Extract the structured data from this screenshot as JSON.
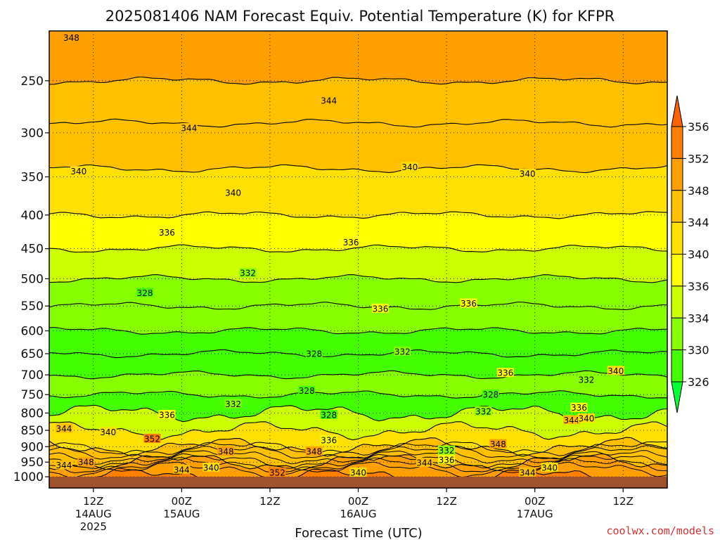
{
  "chart_data": {
    "type": "heatmap",
    "title": "2025081406 NAM Forecast Equiv. Potential Temperature (K) for KFPR",
    "xlabel": "Forecast Time (UTC)",
    "ylabel": "",
    "y_axis": {
      "scale": "log",
      "units": "hPa",
      "range": [
        1040,
        210
      ],
      "ticks": [
        250,
        300,
        350,
        400,
        450,
        500,
        550,
        600,
        650,
        700,
        750,
        800,
        850,
        900,
        950,
        1000
      ]
    },
    "x_axis": {
      "units": "hours since 2025-08-14 06Z",
      "range": [
        0,
        84
      ],
      "ticks": [
        {
          "hour": 6,
          "line1": "12Z",
          "line2": "14AUG",
          "line3": "2025"
        },
        {
          "hour": 18,
          "line1": "00Z",
          "line2": "15AUG",
          "line3": ""
        },
        {
          "hour": 30,
          "line1": "12Z",
          "line2": "",
          "line3": ""
        },
        {
          "hour": 42,
          "line1": "00Z",
          "line2": "16AUG",
          "line3": ""
        },
        {
          "hour": 54,
          "line1": "12Z",
          "line2": "",
          "line3": ""
        },
        {
          "hour": 66,
          "line1": "00Z",
          "line2": "17AUG",
          "line3": ""
        },
        {
          "hour": 78,
          "line1": "12Z",
          "line2": "",
          "line3": ""
        }
      ]
    },
    "grid": true,
    "colorbar": {
      "position": "right",
      "units": "K",
      "levels": [
        326,
        330,
        334,
        336,
        340,
        344,
        348,
        352,
        356
      ],
      "labels": [
        356,
        352,
        348,
        344,
        340,
        336,
        334,
        330,
        326
      ],
      "colors": [
        "#00ff33",
        "#44ff00",
        "#88ff00",
        "#ccff00",
        "#ffff00",
        "#ffe000",
        "#ffc000",
        "#ffa000",
        "#ff8000",
        "#ff6000"
      ]
    },
    "surface_color": "#a0522d",
    "bands": [
      {
        "p": 215,
        "theta": 348
      },
      {
        "p": 250,
        "theta": 346
      },
      {
        "p": 290,
        "theta": 344
      },
      {
        "p": 340,
        "theta": 341
      },
      {
        "p": 400,
        "theta": 338
      },
      {
        "p": 450,
        "theta": 335
      },
      {
        "p": 500,
        "theta": 332
      },
      {
        "p": 550,
        "theta": 330
      },
      {
        "p": 600,
        "theta": 328
      },
      {
        "p": 650,
        "theta": 329
      },
      {
        "p": 700,
        "theta": 330
      },
      {
        "p": 750,
        "theta": 329
      },
      {
        "p": 800,
        "theta": 334
      },
      {
        "p": 850,
        "theta": 342
      },
      {
        "p": 900,
        "theta": 347
      },
      {
        "p": 950,
        "theta": 350
      },
      {
        "p": 1000,
        "theta": 352
      },
      {
        "p": 1040,
        "theta": 352
      }
    ],
    "contour_labels": [
      {
        "hour": 3,
        "p": 215,
        "text": "348"
      },
      {
        "hour": 38,
        "p": 268,
        "text": "344"
      },
      {
        "hour": 19,
        "p": 295,
        "text": "344"
      },
      {
        "hour": 4,
        "p": 343,
        "text": "340"
      },
      {
        "hour": 49,
        "p": 338,
        "text": "340"
      },
      {
        "hour": 65,
        "p": 346,
        "text": "340"
      },
      {
        "hour": 25,
        "p": 370,
        "text": "340"
      },
      {
        "hour": 16,
        "p": 425,
        "text": "336"
      },
      {
        "hour": 41,
        "p": 440,
        "text": "336"
      },
      {
        "hour": 27,
        "p": 490,
        "text": "332"
      },
      {
        "hour": 13,
        "p": 525,
        "text": "328"
      },
      {
        "hour": 45,
        "p": 555,
        "text": "336"
      },
      {
        "hour": 57,
        "p": 545,
        "text": "336"
      },
      {
        "hour": 36,
        "p": 650,
        "text": "328"
      },
      {
        "hour": 48,
        "p": 645,
        "text": "332"
      },
      {
        "hour": 62,
        "p": 695,
        "text": "336"
      },
      {
        "hour": 77,
        "p": 690,
        "text": "340"
      },
      {
        "hour": 73,
        "p": 712,
        "text": "332"
      },
      {
        "hour": 35,
        "p": 740,
        "text": "328"
      },
      {
        "hour": 60,
        "p": 750,
        "text": "328"
      },
      {
        "hour": 25,
        "p": 775,
        "text": "332"
      },
      {
        "hour": 38,
        "p": 805,
        "text": "328"
      },
      {
        "hour": 59,
        "p": 795,
        "text": "332"
      },
      {
        "hour": 72,
        "p": 785,
        "text": "336"
      },
      {
        "hour": 16,
        "p": 805,
        "text": "336"
      },
      {
        "hour": 71,
        "p": 820,
        "text": "344"
      },
      {
        "hour": 73,
        "p": 815,
        "text": "340"
      },
      {
        "hour": 2,
        "p": 845,
        "text": "344"
      },
      {
        "hour": 8,
        "p": 855,
        "text": "340"
      },
      {
        "hour": 14,
        "p": 875,
        "text": "352"
      },
      {
        "hour": 38,
        "p": 880,
        "text": "336"
      },
      {
        "hour": 24,
        "p": 915,
        "text": "348"
      },
      {
        "hour": 36,
        "p": 915,
        "text": "348"
      },
      {
        "hour": 54,
        "p": 912,
        "text": "332"
      },
      {
        "hour": 61,
        "p": 892,
        "text": "348"
      },
      {
        "hour": 54,
        "p": 942,
        "text": "336"
      },
      {
        "hour": 51,
        "p": 952,
        "text": "344"
      },
      {
        "hour": 2,
        "p": 960,
        "text": "344"
      },
      {
        "hour": 5,
        "p": 950,
        "text": "348"
      },
      {
        "hour": 18,
        "p": 975,
        "text": "344"
      },
      {
        "hour": 22,
        "p": 968,
        "text": "340"
      },
      {
        "hour": 31,
        "p": 985,
        "text": "352"
      },
      {
        "hour": 42,
        "p": 985,
        "text": "340"
      },
      {
        "hour": 65,
        "p": 985,
        "text": "344"
      },
      {
        "hour": 68,
        "p": 968,
        "text": "340"
      }
    ]
  },
  "credit": "coolwx.com/models"
}
